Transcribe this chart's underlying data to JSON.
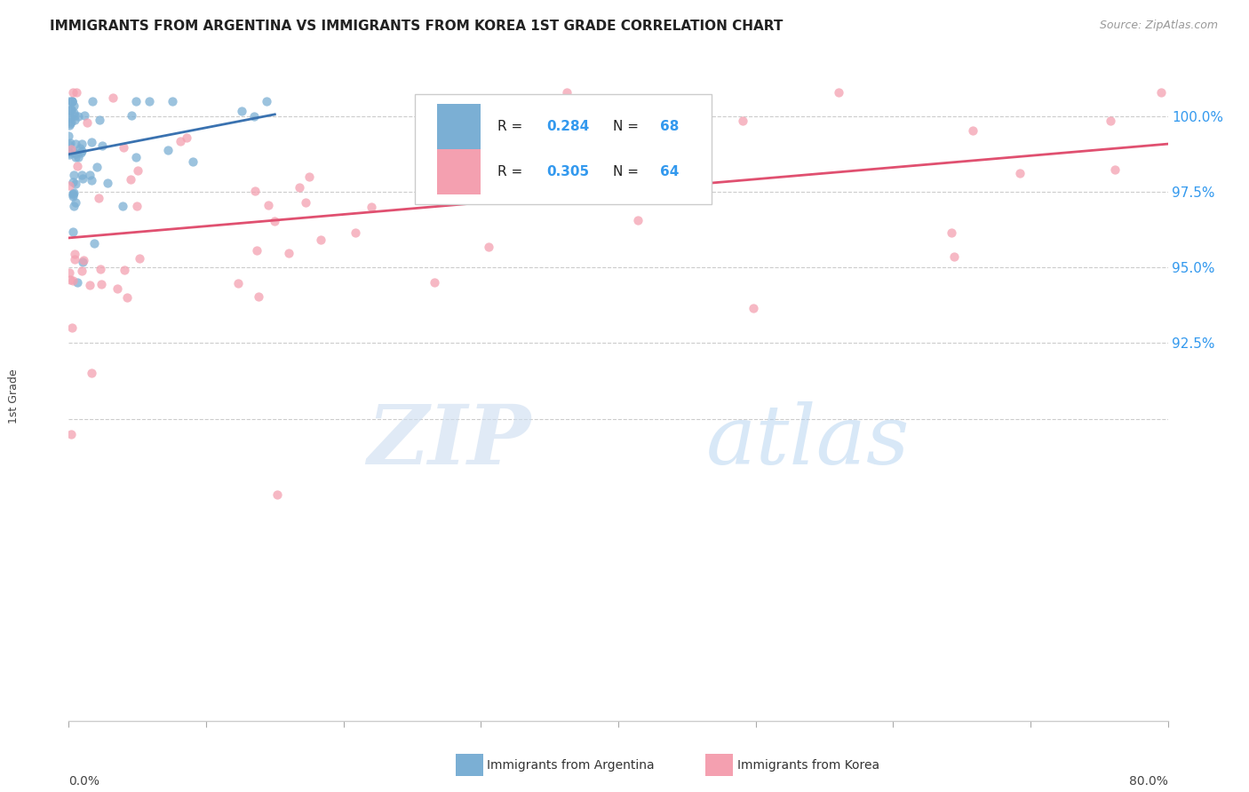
{
  "title": "IMMIGRANTS FROM ARGENTINA VS IMMIGRANTS FROM KOREA 1ST GRADE CORRELATION CHART",
  "source": "Source: ZipAtlas.com",
  "ylabel": "1st Grade",
  "argentina_color": "#7BAFD4",
  "korea_color": "#F4A0B0",
  "argentina_line_color": "#3A72B0",
  "korea_line_color": "#E05070",
  "legend_text": [
    [
      "R = ",
      "0.284",
      "  N = ",
      "68"
    ],
    [
      "R = ",
      "0.305",
      "  N = ",
      "64"
    ]
  ],
  "blue_text_color": "#3399EE",
  "xmin": 0.0,
  "xmax": 80.0,
  "ymin": 80.0,
  "ymax": 101.5,
  "ytick_vals": [
    92.5,
    95.0,
    97.5,
    100.0
  ],
  "ytick_labels": [
    "92.5%",
    "95.0%",
    "97.5%",
    "100.0%"
  ],
  "grid_y_vals": [
    90.0,
    92.5,
    95.0,
    97.5,
    100.0
  ],
  "watermark_zip": "ZIP",
  "watermark_atlas": "atlas",
  "N_argentina": 68,
  "N_korea": 64,
  "R_argentina": 0.284,
  "R_korea": 0.305
}
